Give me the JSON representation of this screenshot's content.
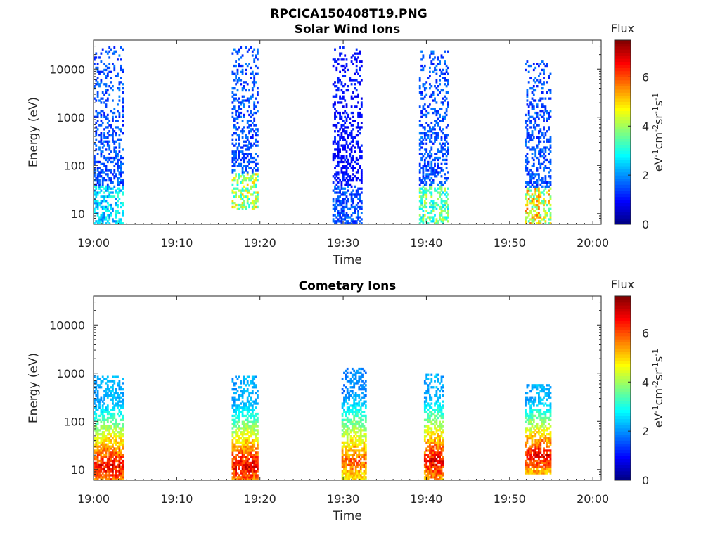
{
  "figure": {
    "title": "RPCICA150408T19.PNG"
  },
  "chart_data": [
    {
      "type": "heatmap",
      "title": "Solar Wind Ions",
      "xlabel": "Time",
      "ylabel": "Energy (eV)",
      "x_ticks": [
        "19:00",
        "19:10",
        "19:20",
        "19:30",
        "19:40",
        "19:50",
        "20:00"
      ],
      "y_ticks": [
        "10",
        "100",
        "1000",
        "10000"
      ],
      "y_scale": "log",
      "ylim": [
        6,
        40000
      ],
      "xlim_minutes": [
        0,
        61
      ],
      "colorbar": {
        "title": "Flux",
        "units": "eV-1cm-2sr-1s-1",
        "ticks": [
          "0",
          "2",
          "4",
          "6"
        ],
        "range": [
          0,
          7.5
        ],
        "colormap": "jet"
      },
      "bursts": [
        {
          "t_start": 0.0,
          "t_end": 3.6,
          "e_min": 6,
          "e_max": 30000,
          "dominant_flux": 1.5,
          "low_energy_flux": 2.5
        },
        {
          "t_start": 16.6,
          "t_end": 19.8,
          "e_min": 12,
          "e_max": 30000,
          "dominant_flux": 1.5,
          "low_energy_flux": 4.0
        },
        {
          "t_start": 28.7,
          "t_end": 32.2,
          "e_min": 6,
          "e_max": 30000,
          "dominant_flux": 1.0,
          "low_energy_flux": 1.5
        },
        {
          "t_start": 39.1,
          "t_end": 42.6,
          "e_min": 6,
          "e_max": 25000,
          "dominant_flux": 1.5,
          "low_energy_flux": 3.5
        },
        {
          "t_start": 51.8,
          "t_end": 55.0,
          "e_min": 6,
          "e_max": 15000,
          "dominant_flux": 1.5,
          "low_energy_flux": 4.5
        }
      ]
    },
    {
      "type": "heatmap",
      "title": "Cometary Ions",
      "xlabel": "Time",
      "ylabel": "Energy (eV)",
      "x_ticks": [
        "19:00",
        "19:10",
        "19:20",
        "19:30",
        "19:40",
        "19:50",
        "20:00"
      ],
      "y_ticks": [
        "10",
        "100",
        "1000",
        "10000"
      ],
      "y_scale": "log",
      "ylim": [
        6,
        40000
      ],
      "xlim_minutes": [
        0,
        61
      ],
      "colorbar": {
        "title": "Flux",
        "units": "eV-1cm-2sr-1s-1",
        "ticks": [
          "0",
          "2",
          "4",
          "6"
        ],
        "range": [
          0,
          7.5
        ],
        "colormap": "jet"
      },
      "bursts": [
        {
          "t_start": 0.0,
          "t_end": 3.6,
          "e_min": 6,
          "e_max": 900,
          "peak_flux": 6.8,
          "peak_energy": 12
        },
        {
          "t_start": 16.6,
          "t_end": 19.8,
          "e_min": 6,
          "e_max": 900,
          "peak_flux": 6.8,
          "peak_energy": 12
        },
        {
          "t_start": 29.8,
          "t_end": 32.7,
          "e_min": 6,
          "e_max": 1300,
          "peak_flux": 6.0,
          "peak_energy": 15
        },
        {
          "t_start": 39.7,
          "t_end": 42.0,
          "e_min": 6,
          "e_max": 1000,
          "peak_flux": 6.8,
          "peak_energy": 15
        },
        {
          "t_start": 51.8,
          "t_end": 55.0,
          "e_min": 8,
          "e_max": 600,
          "peak_flux": 6.8,
          "peak_energy": 20
        }
      ]
    }
  ]
}
